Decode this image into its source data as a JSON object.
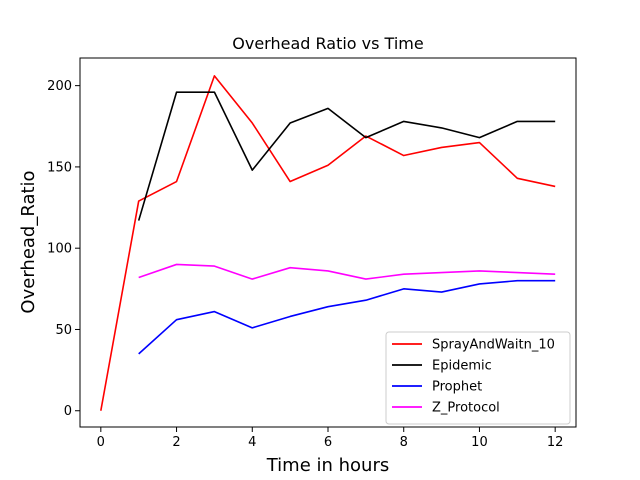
{
  "chart_data": {
    "type": "line",
    "title": "Overhead Ratio vs Time",
    "xlabel": "Time in hours",
    "ylabel": "Overhead_Ratio",
    "xlim": [
      -0.55,
      12.55
    ],
    "ylim": [
      -10,
      217
    ],
    "xticks": [
      0,
      2,
      4,
      6,
      8,
      10,
      12
    ],
    "yticks": [
      0,
      50,
      100,
      150,
      200
    ],
    "grid": false,
    "legend_position": "lower-right",
    "series": [
      {
        "name": "SprayAndWaitn_10",
        "color": "#ff0000",
        "x": [
          0,
          1,
          2,
          3,
          4,
          5,
          6,
          7,
          8,
          9,
          10,
          11,
          12
        ],
        "y": [
          0,
          129,
          141,
          206,
          177,
          141,
          151,
          169,
          157,
          162,
          165,
          143,
          138
        ]
      },
      {
        "name": "Epidemic",
        "color": "#000000",
        "x": [
          1,
          2,
          3,
          4,
          5,
          6,
          7,
          8,
          9,
          10,
          11,
          12
        ],
        "y": [
          117,
          196,
          196,
          148,
          177,
          186,
          168,
          178,
          174,
          168,
          178,
          178
        ]
      },
      {
        "name": "Prophet",
        "color": "#0000ff",
        "x": [
          1,
          2,
          3,
          4,
          5,
          6,
          7,
          8,
          9,
          10,
          11,
          12
        ],
        "y": [
          35,
          56,
          61,
          51,
          58,
          64,
          68,
          75,
          73,
          78,
          80,
          80
        ]
      },
      {
        "name": "Z_Protocol",
        "color": "#ff00ff",
        "x": [
          1,
          2,
          3,
          4,
          5,
          6,
          7,
          8,
          9,
          10,
          11,
          12
        ],
        "y": [
          82,
          90,
          89,
          81,
          88,
          86,
          81,
          84,
          85,
          86,
          85,
          84
        ]
      }
    ]
  }
}
